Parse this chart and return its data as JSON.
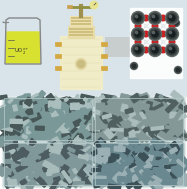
{
  "top_bg": "#d8e4ea",
  "bottom_bg": "#e4ecea",
  "beaker_liquid": "#d8e030",
  "beaker_outline": "#888888",
  "reactor_body": "#f0ecc8",
  "reactor_outline": "#c8a850",
  "reactor_valve_color": "#d4a840",
  "arrow_color": "#c8cece",
  "crystal_line_color": "#d0d8d8",
  "atom_dark_outer": "#282e30",
  "atom_dark_mid": "#485050",
  "atom_dark_inner": "#607070",
  "atom_red": "#cc2020",
  "atom_small_white": "#e8ecec",
  "sem_panels": [
    {
      "bg": "#7a9898",
      "light": "#aabebe",
      "dark": "#485858"
    },
    {
      "bg": "#849898",
      "light": "#aabcbc",
      "dark": "#506060"
    },
    {
      "bg": "#80989a",
      "light": "#a8bcbc",
      "dark": "#4c5c60"
    },
    {
      "bg": "#6a8890",
      "light": "#9ab0b4",
      "dark": "#3c5058"
    }
  ]
}
